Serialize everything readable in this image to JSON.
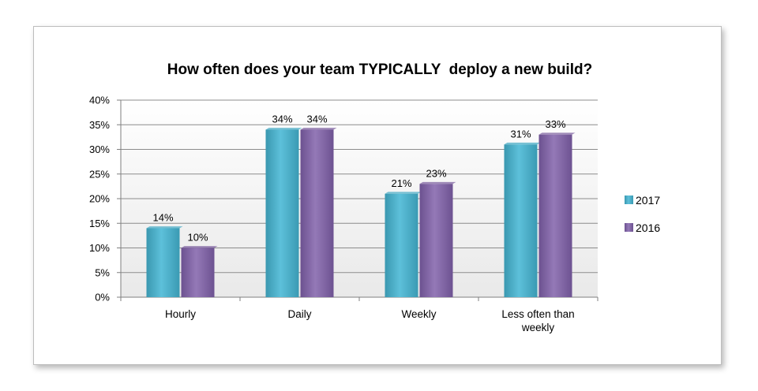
{
  "chart_data": {
    "type": "bar",
    "title": "How often does your team TYPICALLY  deploy a new build?",
    "categories": [
      "Hourly",
      "Daily",
      "Weekly",
      "Less often than weekly"
    ],
    "category_lines": [
      [
        "Hourly"
      ],
      [
        "Daily"
      ],
      [
        "Weekly"
      ],
      [
        "Less often than",
        "weekly"
      ]
    ],
    "series": [
      {
        "name": "2017",
        "values": [
          14,
          34,
          21,
          31
        ],
        "labels": [
          "14%",
          "34%",
          "21%",
          "31%"
        ],
        "color": "#4bacc6"
      },
      {
        "name": "2016",
        "values": [
          10,
          34,
          23,
          33
        ],
        "labels": [
          "10%",
          "34%",
          "23%",
          "33%"
        ],
        "color": "#8064a2"
      }
    ],
    "yticks": [
      "0%",
      "5%",
      "10%",
      "15%",
      "20%",
      "25%",
      "30%",
      "35%",
      "40%"
    ],
    "ylim": [
      0,
      40
    ],
    "grid": true,
    "legend_position": "right",
    "plot_background": "#f2f2f2",
    "gridline_color": "#8c8c8c"
  }
}
